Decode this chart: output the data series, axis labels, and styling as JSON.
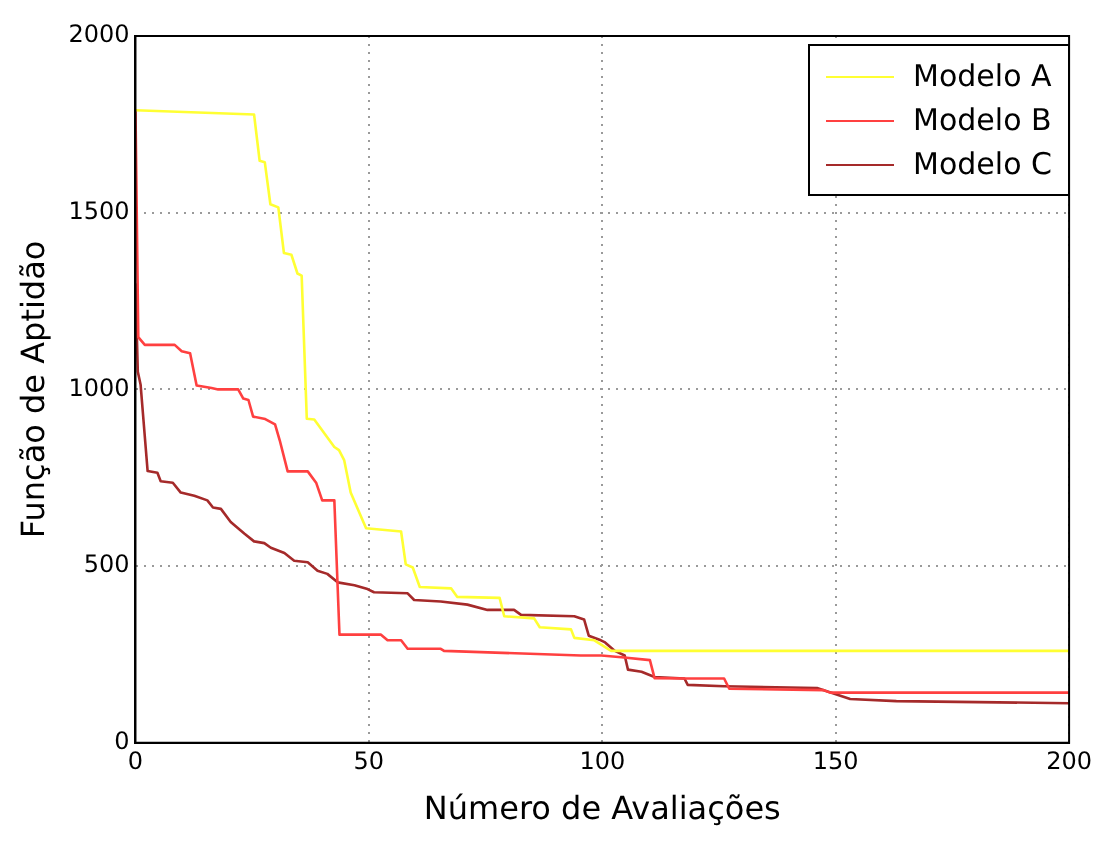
{
  "chart_data": {
    "type": "line",
    "xlabel": "Número de Avaliações",
    "ylabel": "Função de Aptidão",
    "xlim": [
      0,
      200
    ],
    "ylim": [
      0,
      2000
    ],
    "xticks": [
      0,
      50,
      100,
      150,
      200
    ],
    "yticks": [
      0,
      500,
      1000,
      1500,
      2000
    ],
    "grid": true,
    "legend": "top right",
    "marker": "none",
    "line_style": "solid",
    "series": [
      {
        "name": "Modelo A",
        "color": "#ffff33",
        "x": [
          0,
          25.4,
          26.6,
          27.7,
          28.9,
          30.6,
          31.8,
          33.4,
          34.7,
          35.6,
          36.7,
          38.3,
          42.6,
          43.6,
          44.7,
          46.1,
          49.4,
          56.9,
          57.9,
          59.4,
          60.9,
          67.6,
          68.9,
          78,
          79,
          85.4,
          86.6,
          93.3,
          94,
          98.3,
          101.9,
          200
        ],
        "values": [
          1790,
          1778,
          1647,
          1643,
          1524,
          1515,
          1386,
          1381,
          1328,
          1322,
          917,
          915,
          837,
          828,
          800,
          708,
          607,
          598,
          505,
          496,
          441,
          437,
          413,
          410,
          358,
          352,
          327,
          321,
          297,
          290,
          260,
          260
        ]
      },
      {
        "name": "Modelo B",
        "color": "#ff4040",
        "x": [
          0,
          0.6,
          2,
          8.4,
          9.9,
          11.7,
          13.1,
          16.3,
          17.7,
          22,
          23.1,
          24.2,
          25.2,
          27.8,
          29.9,
          30.9,
          32.6,
          36.9,
          38.7,
          40,
          42.6,
          43.7,
          52.6,
          54,
          56.9,
          58.3,
          65.4,
          66.1,
          95.4,
          99.8,
          104.1,
          110.2,
          111.2,
          117.6,
          126.1,
          127.2,
          147.4,
          148.8,
          200
        ],
        "values": [
          1790,
          1148,
          1126,
          1126,
          1108,
          1102,
          1011,
          1004,
          1000,
          1000,
          974,
          970,
          923,
          916,
          901,
          856,
          768,
          768,
          736,
          686,
          686,
          306,
          306,
          290,
          290,
          266,
          266,
          260,
          247,
          247,
          242,
          234,
          183,
          182,
          182,
          153,
          149,
          142,
          142
        ]
      },
      {
        "name": "Modelo C",
        "color": "#a52a2a",
        "x": [
          0,
          0.5,
          1.1,
          2.6,
          4.7,
          5.4,
          8,
          9.7,
          12.6,
          15.4,
          16.6,
          18.3,
          20.4,
          23.3,
          25.4,
          27.6,
          29,
          31.9,
          34,
          36.9,
          39,
          41.1,
          43.3,
          46.9,
          49.7,
          51.1,
          58.3,
          59.7,
          65.4,
          71.1,
          75.4,
          81.1,
          82.6,
          94,
          96.1,
          97.1,
          99.7,
          100.6,
          102.7,
          104.8,
          105.5,
          108.4,
          111.2,
          117.6,
          118.3,
          126.1,
          146,
          153.1,
          163,
          200
        ],
        "values": [
          1300,
          1050,
          1013,
          769,
          764,
          740,
          736,
          708,
          699,
          686,
          666,
          662,
          625,
          592,
          570,
          565,
          552,
          537,
          515,
          511,
          487,
          478,
          454,
          446,
          435,
          426,
          423,
          404,
          400,
          391,
          376,
          376,
          362,
          358,
          349,
          303,
          290,
          284,
          260,
          247,
          207,
          201,
          186,
          182,
          164,
          160,
          155,
          124,
          118,
          112
        ]
      }
    ]
  }
}
